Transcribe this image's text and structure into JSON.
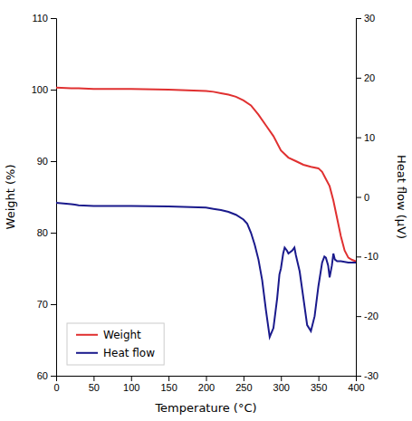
{
  "chart_data": {
    "type": "line",
    "xlabel": "Temperature (°C)",
    "ylabel": "Weight (%)",
    "y2label": "Heat flow (μV)",
    "xlim": [
      0,
      400
    ],
    "xticks": [
      0,
      50,
      100,
      150,
      200,
      250,
      300,
      350,
      400
    ],
    "ylim": [
      60,
      110
    ],
    "yticks": [
      60,
      70,
      80,
      90,
      100,
      110
    ],
    "y2lim": [
      -30,
      30
    ],
    "y2ticks": [
      -30,
      -20,
      -10,
      0,
      10,
      20,
      30
    ],
    "grid": false,
    "legend": "lower left",
    "series": [
      {
        "name": "Weight",
        "color": "#E03030",
        "x": [
          0,
          20,
          30,
          50,
          100,
          150,
          200,
          210,
          220,
          230,
          240,
          250,
          260,
          270,
          280,
          290,
          300,
          310,
          320,
          330,
          340,
          350,
          355,
          360,
          365,
          370,
          375,
          380,
          385,
          390,
          395,
          400
        ],
        "values": [
          100.3,
          100.2,
          100.2,
          100.1,
          100.1,
          100.0,
          99.8,
          99.7,
          99.5,
          99.3,
          99.0,
          98.5,
          97.8,
          96.5,
          95.0,
          93.5,
          91.5,
          90.5,
          90.0,
          89.5,
          89.2,
          89.0,
          88.5,
          87.5,
          86.5,
          84.5,
          82.0,
          79.5,
          77.5,
          76.5,
          76.2,
          76.0
        ]
      },
      {
        "name": "Heat flow",
        "color": "#1a1a8c",
        "axis": "y2",
        "x": [
          0,
          20,
          25,
          30,
          50,
          100,
          150,
          200,
          210,
          220,
          230,
          240,
          250,
          255,
          260,
          265,
          270,
          275,
          280,
          285,
          290,
          295,
          298,
          300,
          303,
          305,
          308,
          310,
          315,
          318,
          320,
          325,
          330,
          335,
          340,
          345,
          350,
          355,
          358,
          360,
          363,
          365,
          368,
          370,
          372,
          375,
          380,
          385,
          390,
          395,
          400
        ],
        "values": [
          -1.0,
          -1.2,
          -1.3,
          -1.4,
          -1.5,
          -1.5,
          -1.6,
          -1.8,
          -2.0,
          -2.2,
          -2.5,
          -3.0,
          -3.8,
          -4.5,
          -6.0,
          -8.0,
          -10.5,
          -14.0,
          -19.0,
          -23.5,
          -22.0,
          -17.0,
          -13.0,
          -12.0,
          -9.5,
          -8.5,
          -9.0,
          -9.5,
          -9.0,
          -8.5,
          -9.8,
          -12.5,
          -17.0,
          -21.5,
          -22.5,
          -20.0,
          -15.0,
          -11.0,
          -10.0,
          -10.2,
          -11.5,
          -13.5,
          -11.5,
          -9.5,
          -10.5,
          -10.8,
          -10.8,
          -10.9,
          -11.0,
          -11.0,
          -11.0
        ]
      }
    ]
  }
}
